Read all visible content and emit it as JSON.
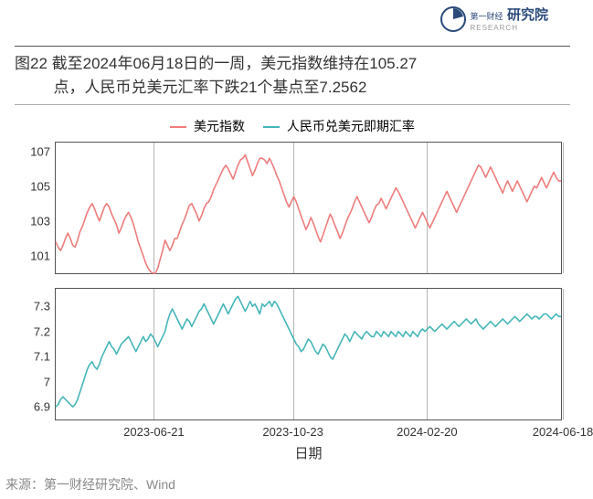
{
  "logo": {
    "line1_prefix": "第一财经",
    "line1_main": "研究院",
    "line2": "RESEARCH",
    "icon_color": "#2b4a7a"
  },
  "title": {
    "line1": "图22  截至2024年06月18日的一周，美元指数维持在105.27",
    "line2": "点，人民币兑美元汇率下跌21个基点至7.2562"
  },
  "legend": {
    "series1": {
      "label": "美元指数",
      "color": "#ee7c7c"
    },
    "series2": {
      "label": "人民币兑美元即期汇率",
      "color": "#45b5b8"
    }
  },
  "chart": {
    "xlabel": "日期",
    "xlim": [
      0,
      300
    ],
    "xticks": [
      {
        "pos": 60,
        "label": "2023-06-21"
      },
      {
        "pos": 145,
        "label": "2023-10-23"
      },
      {
        "pos": 227,
        "label": "2024-02-20"
      },
      {
        "pos": 310,
        "label": "2024-06-18"
      }
    ],
    "gridlines_x": [
      60,
      145,
      227,
      310
    ],
    "panel1": {
      "ylim": [
        100,
        107.5
      ],
      "yticks": [
        101,
        103,
        105,
        107
      ],
      "color": "#ee7c7c",
      "line_width": 1.6,
      "data": [
        101.8,
        101.5,
        101.3,
        101.6,
        102.0,
        102.3,
        102.0,
        101.6,
        101.5,
        101.9,
        102.4,
        102.7,
        103.1,
        103.5,
        103.8,
        104.0,
        103.7,
        103.3,
        103.0,
        103.4,
        103.8,
        104.0,
        103.8,
        103.4,
        103.1,
        102.8,
        102.3,
        102.6,
        103.0,
        103.3,
        103.5,
        103.2,
        102.8,
        102.3,
        101.8,
        101.4,
        101.0,
        100.6,
        100.3,
        100.1,
        100.0,
        100.0,
        100.3,
        100.8,
        101.3,
        101.9,
        101.6,
        101.3,
        101.6,
        102.0,
        102.0,
        102.4,
        102.8,
        103.1,
        103.5,
        103.9,
        104.0,
        103.7,
        103.4,
        103.0,
        103.3,
        103.7,
        104.0,
        104.1,
        104.4,
        104.8,
        105.1,
        105.4,
        105.7,
        106.0,
        106.2,
        106.0,
        105.7,
        105.4,
        105.8,
        106.2,
        106.5,
        106.6,
        106.8,
        106.4,
        106.0,
        105.6,
        105.9,
        106.3,
        106.6,
        106.6,
        106.5,
        106.3,
        106.6,
        106.3,
        106.0,
        105.6,
        105.3,
        104.9,
        104.5,
        104.1,
        103.8,
        104.1,
        104.4,
        104.1,
        103.7,
        103.3,
        102.9,
        102.5,
        102.8,
        103.2,
        102.9,
        102.5,
        102.1,
        101.8,
        102.2,
        102.6,
        103.0,
        103.4,
        103.1,
        102.7,
        102.4,
        102.0,
        102.3,
        102.7,
        103.1,
        103.4,
        103.7,
        104.1,
        104.4,
        104.1,
        103.8,
        103.5,
        103.2,
        102.9,
        103.2,
        103.6,
        103.9,
        104.0,
        104.3,
        104.0,
        103.7,
        104.0,
        104.3,
        104.6,
        104.9,
        104.7,
        104.4,
        104.1,
        103.8,
        103.5,
        103.2,
        102.9,
        102.6,
        102.9,
        103.2,
        103.5,
        103.2,
        102.9,
        102.6,
        102.9,
        103.2,
        103.5,
        103.8,
        104.1,
        104.4,
        104.7,
        104.4,
        104.1,
        103.8,
        103.5,
        103.8,
        104.1,
        104.4,
        104.7,
        105.0,
        105.3,
        105.6,
        105.9,
        106.2,
        106.1,
        105.8,
        105.5,
        105.8,
        106.1,
        105.8,
        105.5,
        105.2,
        104.9,
        104.6,
        105.0,
        105.3,
        105.0,
        104.7,
        105.0,
        105.3,
        105.0,
        104.7,
        104.4,
        104.1,
        104.4,
        104.7,
        105.0,
        104.9,
        105.2,
        105.5,
        105.2,
        104.9,
        105.2,
        105.5,
        105.8,
        105.5,
        105.3,
        105.3
      ]
    },
    "panel2": {
      "ylim": [
        6.85,
        7.37
      ],
      "yticks": [
        6.9,
        7.0,
        7.1,
        7.2,
        7.3
      ],
      "color": "#45b5b8",
      "line_width": 1.6,
      "data": [
        6.9,
        6.91,
        6.93,
        6.94,
        6.93,
        6.92,
        6.91,
        6.9,
        6.91,
        6.93,
        6.96,
        6.99,
        7.02,
        7.05,
        7.07,
        7.08,
        7.06,
        7.05,
        7.07,
        7.1,
        7.12,
        7.14,
        7.16,
        7.14,
        7.13,
        7.11,
        7.13,
        7.15,
        7.16,
        7.17,
        7.18,
        7.16,
        7.14,
        7.12,
        7.14,
        7.16,
        7.18,
        7.16,
        7.17,
        7.19,
        7.18,
        7.16,
        7.14,
        7.16,
        7.18,
        7.2,
        7.24,
        7.27,
        7.29,
        7.27,
        7.25,
        7.23,
        7.21,
        7.23,
        7.25,
        7.24,
        7.22,
        7.24,
        7.26,
        7.28,
        7.29,
        7.31,
        7.29,
        7.27,
        7.25,
        7.23,
        7.25,
        7.27,
        7.29,
        7.31,
        7.29,
        7.27,
        7.29,
        7.31,
        7.33,
        7.34,
        7.32,
        7.3,
        7.28,
        7.3,
        7.32,
        7.3,
        7.31,
        7.29,
        7.27,
        7.31,
        7.3,
        7.31,
        7.32,
        7.3,
        7.32,
        7.31,
        7.29,
        7.27,
        7.25,
        7.23,
        7.21,
        7.19,
        7.17,
        7.15,
        7.14,
        7.12,
        7.13,
        7.15,
        7.17,
        7.16,
        7.14,
        7.12,
        7.11,
        7.13,
        7.15,
        7.14,
        7.12,
        7.1,
        7.09,
        7.11,
        7.13,
        7.15,
        7.17,
        7.19,
        7.18,
        7.16,
        7.18,
        7.2,
        7.19,
        7.18,
        7.17,
        7.19,
        7.2,
        7.19,
        7.18,
        7.18,
        7.2,
        7.19,
        7.18,
        7.2,
        7.19,
        7.18,
        7.2,
        7.19,
        7.18,
        7.2,
        7.19,
        7.18,
        7.2,
        7.19,
        7.18,
        7.2,
        7.19,
        7.18,
        7.2,
        7.21,
        7.2,
        7.21,
        7.22,
        7.21,
        7.2,
        7.21,
        7.22,
        7.23,
        7.22,
        7.21,
        7.22,
        7.23,
        7.24,
        7.23,
        7.22,
        7.23,
        7.24,
        7.25,
        7.24,
        7.23,
        7.24,
        7.25,
        7.23,
        7.22,
        7.21,
        7.22,
        7.23,
        7.24,
        7.23,
        7.22,
        7.23,
        7.24,
        7.25,
        7.24,
        7.23,
        7.24,
        7.25,
        7.26,
        7.25,
        7.24,
        7.25,
        7.26,
        7.27,
        7.26,
        7.25,
        7.26,
        7.26,
        7.25,
        7.26,
        7.27,
        7.27,
        7.26,
        7.25,
        7.26,
        7.27,
        7.26,
        7.26
      ]
    }
  },
  "source": "来源：第一财经研究院、Wind",
  "colors": {
    "background": "#ffffff",
    "border": "#555555",
    "gridline": "#b5b5b5",
    "text": "#333333",
    "source_text": "#888888"
  }
}
